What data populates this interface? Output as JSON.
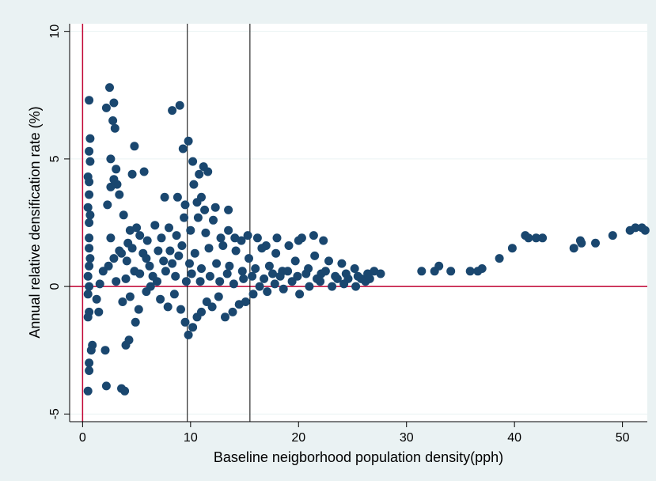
{
  "chart_data": {
    "type": "scatter",
    "title": "",
    "xlabel": "Baseline neigborhood population density(pph)",
    "ylabel": "Annual relative densification rate (%)",
    "xlim": [
      -1.2,
      52.3
    ],
    "ylim": [
      -5.3,
      10.3
    ],
    "xticks": [
      0,
      10,
      20,
      30,
      40,
      50
    ],
    "yticks": [
      -5,
      0,
      5,
      10
    ],
    "grid": "horizontal",
    "reference_lines": {
      "horizontal_y": 0,
      "vertical_red_x": 0,
      "vertical_black_x": [
        9.7,
        15.5
      ]
    },
    "colors": {
      "points": "#1a476f",
      "outer_background": "#eaf2f3",
      "plot_background": "#ffffff",
      "grid": "#eaf2f3",
      "reference_red": "#c10534",
      "reference_black": "#000000"
    },
    "series": [
      {
        "points": [
          [
            0.6,
            7.3
          ],
          [
            0.7,
            5.8
          ],
          [
            0.6,
            5.3
          ],
          [
            0.7,
            4.9
          ],
          [
            0.5,
            4.3
          ],
          [
            0.6,
            4.1
          ],
          [
            0.6,
            3.6
          ],
          [
            0.5,
            3.1
          ],
          [
            0.7,
            2.8
          ],
          [
            0.6,
            2.5
          ],
          [
            0.6,
            1.9
          ],
          [
            0.6,
            1.5
          ],
          [
            0.7,
            1.1
          ],
          [
            0.6,
            0.8
          ],
          [
            0.5,
            0.4
          ],
          [
            0.6,
            0.0
          ],
          [
            0.5,
            -0.3
          ],
          [
            0.6,
            -1.0
          ],
          [
            0.5,
            -1.2
          ],
          [
            0.9,
            -2.3
          ],
          [
            0.8,
            -2.5
          ],
          [
            0.6,
            -3.0
          ],
          [
            0.6,
            -3.3
          ],
          [
            0.5,
            -4.1
          ],
          [
            1.5,
            -1.0
          ],
          [
            1.3,
            -0.5
          ],
          [
            1.6,
            0.1
          ],
          [
            1.9,
            0.6
          ],
          [
            2.1,
            -2.5
          ],
          [
            2.2,
            -3.9
          ],
          [
            3.6,
            -4.0
          ],
          [
            3.9,
            -4.1
          ],
          [
            4.0,
            -2.3
          ],
          [
            4.3,
            -2.1
          ],
          [
            2.5,
            7.8
          ],
          [
            2.2,
            7.0
          ],
          [
            2.9,
            7.2
          ],
          [
            2.8,
            6.5
          ],
          [
            3.0,
            6.2
          ],
          [
            2.6,
            5.0
          ],
          [
            3.1,
            4.6
          ],
          [
            2.9,
            4.2
          ],
          [
            3.2,
            4.0
          ],
          [
            2.6,
            3.9
          ],
          [
            3.4,
            3.6
          ],
          [
            2.3,
            3.2
          ],
          [
            4.8,
            5.5
          ],
          [
            4.6,
            4.4
          ],
          [
            5.7,
            4.5
          ],
          [
            8.3,
            6.9
          ],
          [
            9.0,
            7.1
          ],
          [
            9.3,
            5.4
          ],
          [
            9.8,
            5.7
          ],
          [
            10.2,
            4.9
          ],
          [
            10.8,
            4.4
          ],
          [
            11.2,
            4.7
          ],
          [
            11.6,
            4.5
          ],
          [
            10.3,
            4.0
          ],
          [
            11.0,
            3.5
          ],
          [
            10.6,
            3.3
          ],
          [
            11.3,
            3.0
          ],
          [
            12.3,
            3.1
          ],
          [
            13.5,
            3.0
          ],
          [
            9.5,
            3.2
          ],
          [
            8.8,
            3.5
          ],
          [
            7.6,
            3.5
          ],
          [
            3.8,
            2.8
          ],
          [
            4.4,
            2.2
          ],
          [
            5.3,
            2.0
          ],
          [
            2.6,
            1.9
          ],
          [
            3.4,
            1.4
          ],
          [
            4.1,
            1.0
          ],
          [
            4.8,
            0.6
          ],
          [
            5.6,
            1.3
          ],
          [
            6.2,
            0.8
          ],
          [
            6.9,
            0.2
          ],
          [
            7.5,
            1.0
          ],
          [
            8.1,
            1.4
          ],
          [
            8.6,
            0.4
          ],
          [
            9.2,
            1.6
          ],
          [
            9.9,
            0.9
          ],
          [
            10.4,
            1.3
          ],
          [
            11.0,
            0.7
          ],
          [
            11.7,
            1.5
          ],
          [
            12.4,
            0.9
          ],
          [
            13.0,
            1.6
          ],
          [
            13.6,
            0.8
          ],
          [
            14.2,
            1.4
          ],
          [
            14.8,
            0.6
          ],
          [
            15.4,
            1.1
          ],
          [
            16.0,
            0.7
          ],
          [
            16.6,
            1.5
          ],
          [
            17.3,
            0.8
          ],
          [
            17.9,
            1.3
          ],
          [
            18.5,
            0.6
          ],
          [
            19.1,
            1.6
          ],
          [
            19.7,
            1.0
          ],
          [
            20.3,
            1.9
          ],
          [
            20.9,
            0.7
          ],
          [
            21.5,
            1.2
          ],
          [
            22.1,
            0.5
          ],
          [
            22.8,
            1.0
          ],
          [
            23.4,
            0.4
          ],
          [
            24.0,
            0.9
          ],
          [
            24.6,
            0.3
          ],
          [
            25.2,
            0.7
          ],
          [
            25.8,
            0.3
          ],
          [
            26.4,
            0.5
          ],
          [
            27.0,
            0.6
          ],
          [
            27.6,
            0.5
          ],
          [
            21.4,
            2.0
          ],
          [
            22.3,
            1.8
          ],
          [
            20.0,
            1.8
          ],
          [
            18.0,
            1.9
          ],
          [
            17.0,
            1.6
          ],
          [
            3.1,
            0.2
          ],
          [
            3.7,
            -0.6
          ],
          [
            4.4,
            -0.4
          ],
          [
            5.2,
            -0.9
          ],
          [
            4.9,
            -1.4
          ],
          [
            5.9,
            -0.2
          ],
          [
            6.5,
            0.4
          ],
          [
            7.2,
            -0.5
          ],
          [
            7.9,
            -0.8
          ],
          [
            8.5,
            -0.3
          ],
          [
            9.1,
            -0.9
          ],
          [
            9.5,
            -1.4
          ],
          [
            9.8,
            -1.9
          ],
          [
            10.2,
            -1.6
          ],
          [
            10.6,
            -1.2
          ],
          [
            11.0,
            -1.0
          ],
          [
            11.5,
            -0.6
          ],
          [
            12.0,
            -0.8
          ],
          [
            12.6,
            -0.4
          ],
          [
            13.2,
            -1.2
          ],
          [
            13.9,
            -1.0
          ],
          [
            14.5,
            -0.7
          ],
          [
            15.1,
            -0.6
          ],
          [
            15.8,
            -0.3
          ],
          [
            16.4,
            0.0
          ],
          [
            17.1,
            -0.2
          ],
          [
            17.8,
            0.1
          ],
          [
            18.6,
            -0.1
          ],
          [
            19.4,
            0.2
          ],
          [
            20.1,
            -0.3
          ],
          [
            21.0,
            0.0
          ],
          [
            22.0,
            0.2
          ],
          [
            23.1,
            0.0
          ],
          [
            24.2,
            0.1
          ],
          [
            25.3,
            0.0
          ],
          [
            26.2,
            0.2
          ],
          [
            4.2,
            1.7
          ],
          [
            5.0,
            2.3
          ],
          [
            6.0,
            1.8
          ],
          [
            6.7,
            2.4
          ],
          [
            7.3,
            1.9
          ],
          [
            8.0,
            2.3
          ],
          [
            8.7,
            2.0
          ],
          [
            9.4,
            2.7
          ],
          [
            10.0,
            2.2
          ],
          [
            10.7,
            2.7
          ],
          [
            11.4,
            2.1
          ],
          [
            12.1,
            2.6
          ],
          [
            12.8,
            1.9
          ],
          [
            13.5,
            2.2
          ],
          [
            14.1,
            1.9
          ],
          [
            14.7,
            1.8
          ],
          [
            15.3,
            2.0
          ],
          [
            16.2,
            1.9
          ],
          [
            2.4,
            0.8
          ],
          [
            2.9,
            1.1
          ],
          [
            3.6,
            1.3
          ],
          [
            4.0,
            0.3
          ],
          [
            4.6,
            1.5
          ],
          [
            5.3,
            0.5
          ],
          [
            5.9,
            1.1
          ],
          [
            6.3,
            0.0
          ],
          [
            7.0,
            1.4
          ],
          [
            7.7,
            0.6
          ],
          [
            8.3,
            0.9
          ],
          [
            8.9,
            1.2
          ],
          [
            9.6,
            0.2
          ],
          [
            10.1,
            0.5
          ],
          [
            10.9,
            0.2
          ],
          [
            11.8,
            0.4
          ],
          [
            12.7,
            0.2
          ],
          [
            13.4,
            0.5
          ],
          [
            14.0,
            0.1
          ],
          [
            14.9,
            0.3
          ],
          [
            15.7,
            0.4
          ],
          [
            16.8,
            0.3
          ],
          [
            17.6,
            0.5
          ],
          [
            18.3,
            0.4
          ],
          [
            19.0,
            0.6
          ],
          [
            19.9,
            0.4
          ],
          [
            20.7,
            0.5
          ],
          [
            21.7,
            0.3
          ],
          [
            22.5,
            0.6
          ],
          [
            23.6,
            0.3
          ],
          [
            24.4,
            0.5
          ],
          [
            25.5,
            0.4
          ],
          [
            26.6,
            0.3
          ],
          [
            31.4,
            0.6
          ],
          [
            32.6,
            0.6
          ],
          [
            33.0,
            0.8
          ],
          [
            34.1,
            0.6
          ],
          [
            35.9,
            0.6
          ],
          [
            36.6,
            0.6
          ],
          [
            37.0,
            0.7
          ],
          [
            38.6,
            1.1
          ],
          [
            39.8,
            1.5
          ],
          [
            41.0,
            2.0
          ],
          [
            41.3,
            1.9
          ],
          [
            42.0,
            1.9
          ],
          [
            42.6,
            1.9
          ],
          [
            45.5,
            1.5
          ],
          [
            46.1,
            1.8
          ],
          [
            46.2,
            1.7
          ],
          [
            47.5,
            1.7
          ],
          [
            49.1,
            2.0
          ],
          [
            50.7,
            2.2
          ],
          [
            51.2,
            2.3
          ],
          [
            51.8,
            2.3
          ],
          [
            52.1,
            2.2
          ]
        ]
      }
    ]
  }
}
